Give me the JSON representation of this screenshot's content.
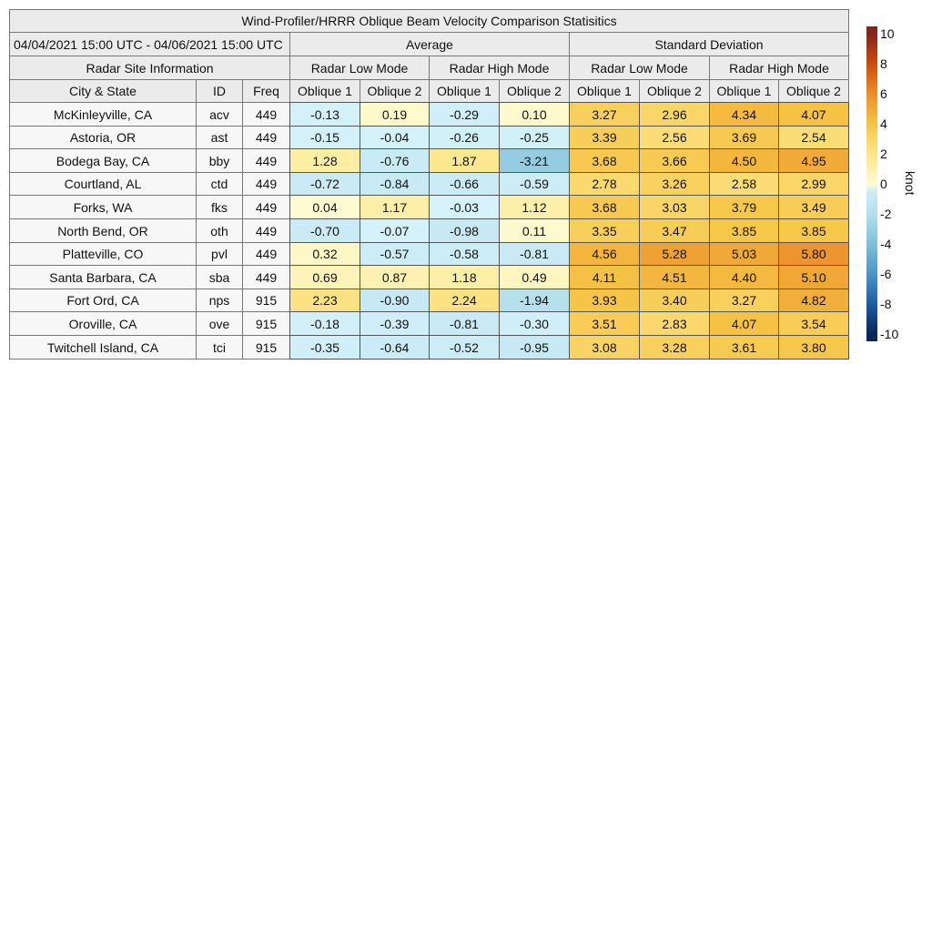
{
  "chart_data": {
    "type": "heatmap",
    "title": "Wind-Profiler/HRRR Oblique Beam Velocity Comparison Statisitics",
    "date_range": "04/04/2021 15:00 UTC - 04/06/2021 15:00 UTC",
    "groups": [
      "Average",
      "Standard Deviation"
    ],
    "site_header": "Radar Site Information",
    "modes": [
      "Radar Low Mode",
      "Radar High Mode",
      "Radar Low Mode",
      "Radar High Mode"
    ],
    "columns": [
      "City & State",
      "ID",
      "Freq",
      "Oblique 1",
      "Oblique 2",
      "Oblique 1",
      "Oblique 2",
      "Oblique 1",
      "Oblique 2",
      "Oblique 1",
      "Oblique 2"
    ],
    "rows": [
      {
        "city": "McKinleyville, CA",
        "id": "acv",
        "freq": "449",
        "values": [
          "-0.13",
          "0.19",
          "-0.29",
          "0.10",
          "3.27",
          "2.96",
          "4.34",
          "4.07"
        ]
      },
      {
        "city": "Astoria, OR",
        "id": "ast",
        "freq": "449",
        "values": [
          "-0.15",
          "-0.04",
          "-0.26",
          "-0.25",
          "3.39",
          "2.56",
          "3.69",
          "2.54"
        ]
      },
      {
        "city": "Bodega Bay, CA",
        "id": "bby",
        "freq": "449",
        "values": [
          "1.28",
          "-0.76",
          "1.87",
          "-3.21",
          "3.68",
          "3.66",
          "4.50",
          "4.95"
        ]
      },
      {
        "city": "Courtland, AL",
        "id": "ctd",
        "freq": "449",
        "values": [
          "-0.72",
          "-0.84",
          "-0.66",
          "-0.59",
          "2.78",
          "3.26",
          "2.58",
          "2.99"
        ]
      },
      {
        "city": "Forks, WA",
        "id": "fks",
        "freq": "449",
        "values": [
          "0.04",
          "1.17",
          "-0.03",
          "1.12",
          "3.68",
          "3.03",
          "3.79",
          "3.49"
        ]
      },
      {
        "city": "North Bend, OR",
        "id": "oth",
        "freq": "449",
        "values": [
          "-0.70",
          "-0.07",
          "-0.98",
          "0.11",
          "3.35",
          "3.47",
          "3.85",
          "3.85"
        ]
      },
      {
        "city": "Platteville, CO",
        "id": "pvl",
        "freq": "449",
        "values": [
          "0.32",
          "-0.57",
          "-0.58",
          "-0.81",
          "4.56",
          "5.28",
          "5.03",
          "5.80"
        ]
      },
      {
        "city": "Santa Barbara, CA",
        "id": "sba",
        "freq": "449",
        "values": [
          "0.69",
          "0.87",
          "1.18",
          "0.49",
          "4.11",
          "4.51",
          "4.40",
          "5.10"
        ]
      },
      {
        "city": "Fort Ord, CA",
        "id": "nps",
        "freq": "915",
        "values": [
          "2.23",
          "-0.90",
          "2.24",
          "-1.94",
          "3.93",
          "3.40",
          "3.27",
          "4.82"
        ]
      },
      {
        "city": "Oroville, CA",
        "id": "ove",
        "freq": "915",
        "values": [
          "-0.18",
          "-0.39",
          "-0.81",
          "-0.30",
          "3.51",
          "2.83",
          "4.07",
          "3.54"
        ]
      },
      {
        "city": "Twitchell Island, CA",
        "id": "tci",
        "freq": "915",
        "values": [
          "-0.35",
          "-0.64",
          "-0.52",
          "-0.95",
          "3.08",
          "3.28",
          "3.61",
          "3.80"
        ]
      }
    ],
    "colorbar": {
      "label": "knot",
      "range": [
        -10.5,
        10.5
      ],
      "ticks": [
        "10",
        "8",
        "6",
        "4",
        "2",
        "0",
        "-2",
        "-4",
        "-6",
        "-8",
        "-10"
      ],
      "colors_positive": [
        "#fffbd2",
        "#fde68a",
        "#f6c445",
        "#eb8f2a",
        "#cc4c0c",
        "#82261a"
      ],
      "colors_negative": [
        "#d6f2fa",
        "#b5dfec",
        "#80c0d9",
        "#4a95c6",
        "#1d5da2",
        "#0a2756"
      ]
    }
  }
}
